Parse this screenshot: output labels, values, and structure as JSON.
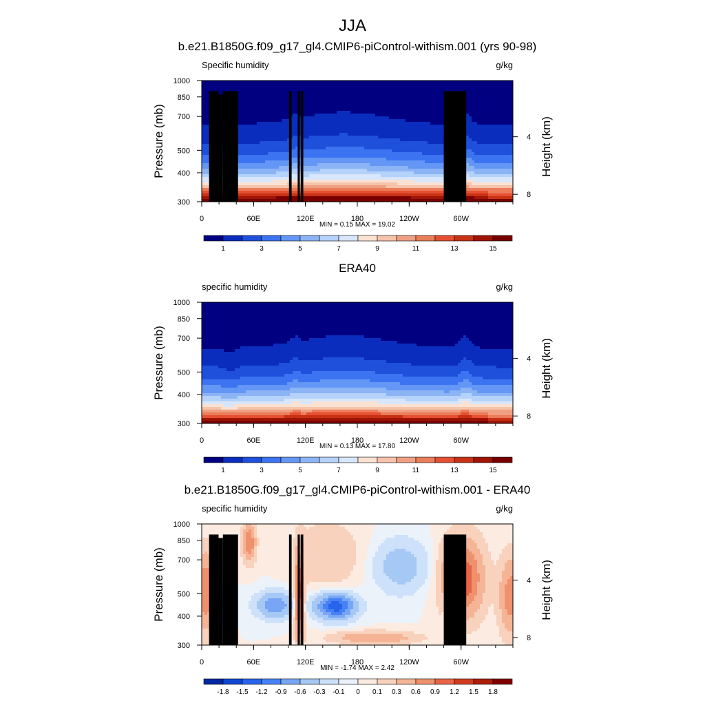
{
  "figure": {
    "season": "JJA"
  },
  "panels": [
    {
      "title": "b.e21.B1850G.f09_g17_gl4.CMIP6-piControl-withism.001 (yrs 90-98)",
      "left_label": "Specific humidity",
      "right_label": "g/kg",
      "stats": "MIN =   0.15  MAX =  19.02",
      "colorbar_labels": [
        "1",
        "3",
        "5",
        "7",
        "9",
        "11",
        "13",
        "15"
      ]
    },
    {
      "title": "ERA40",
      "left_label": "specific humidity",
      "right_label": "g/kg",
      "stats": "MIN =   0.13  MAX =  17.80",
      "colorbar_labels": [
        "1",
        "3",
        "5",
        "7",
        "9",
        "11",
        "13",
        "15"
      ]
    },
    {
      "title": "b.e21.B1850G.f09_g17_gl4.CMIP6-piControl-withism.001 - ERA40",
      "left_label": "specific humidity",
      "right_label": "g/kg",
      "stats": "MIN =  -1.74  MAX =   2.42",
      "colorbar_labels": [
        "-1.8",
        "-1.5",
        "-1.2",
        "-0.9",
        "-0.6",
        "-0.3",
        "-0.1",
        "0",
        "0.1",
        "0.3",
        "0.6",
        "0.9",
        "1.2",
        "1.5",
        "1.8"
      ]
    }
  ],
  "axes": {
    "xlabel": "",
    "ylabel": "Pressure (mb)",
    "y2label": "Height (km)",
    "x_ticks": [
      "0",
      "60E",
      "120E",
      "180",
      "120W",
      "60W"
    ],
    "y_ticks": [
      "300",
      "400",
      "500",
      "700",
      "850",
      "1000"
    ],
    "y2_ticks": [
      "8",
      "4"
    ]
  },
  "colors": {
    "full_field": [
      "#000080",
      "#0a2dbe",
      "#1e50dc",
      "#3c73f0",
      "#6496f5",
      "#8cb4f5",
      "#b4d2fa",
      "#d7e6fa",
      "#fae1d2",
      "#f5c3aa",
      "#f0a082",
      "#eb7d5a",
      "#e65032",
      "#c83214",
      "#a01405",
      "#780000"
    ],
    "difference": [
      "#0028a0",
      "#0f46d2",
      "#2864eb",
      "#4682f5",
      "#78a5f5",
      "#a5c8f5",
      "#cde1fa",
      "#ebf2fa",
      "#fcebe1",
      "#f8d2bc",
      "#f5b496",
      "#f0916e",
      "#e86446",
      "#d23c1e",
      "#aa1e0a",
      "#820000"
    ],
    "topography": "#000000"
  },
  "chart_data": [
    {
      "type": "heatmap",
      "title": "b.e21.B1850G.f09_g17_gl4.CMIP6-piControl-withism.001 (yrs 90-98)",
      "field": "Specific humidity",
      "units": "g/kg",
      "x_range_deg_east": [
        0,
        360
      ],
      "pressure_range_mb": [
        1000,
        300
      ],
      "y_scale": "log-pressure",
      "min": 0.15,
      "max": 19.02,
      "contour_levels": [
        0,
        1,
        2,
        3,
        4,
        5,
        6,
        7,
        8,
        9,
        10,
        11,
        12,
        13,
        14,
        15,
        16
      ],
      "topography_mask": true,
      "shading": "full_field"
    },
    {
      "type": "heatmap",
      "title": "ERA40",
      "field": "specific humidity",
      "units": "g/kg",
      "x_range_deg_east": [
        0,
        360
      ],
      "pressure_range_mb": [
        1000,
        300
      ],
      "y_scale": "log-pressure",
      "min": 0.13,
      "max": 17.8,
      "contour_levels": [
        0,
        1,
        2,
        3,
        4,
        5,
        6,
        7,
        8,
        9,
        10,
        11,
        12,
        13,
        14,
        15,
        16
      ],
      "topography_mask": false,
      "shading": "full_field"
    },
    {
      "type": "heatmap",
      "title": "b.e21.B1850G.f09_g17_gl4.CMIP6-piControl-withism.001 - ERA40",
      "field": "specific humidity",
      "units": "g/kg",
      "x_range_deg_east": [
        0,
        360
      ],
      "pressure_range_mb": [
        1000,
        300
      ],
      "y_scale": "log-pressure",
      "min": -1.74,
      "max": 2.42,
      "contour_levels": [
        -1.8,
        -1.5,
        -1.2,
        -0.9,
        -0.6,
        -0.3,
        -0.1,
        0,
        0.1,
        0.3,
        0.6,
        0.9,
        1.2,
        1.5,
        1.8
      ],
      "topography_mask": true,
      "shading": "difference"
    }
  ]
}
